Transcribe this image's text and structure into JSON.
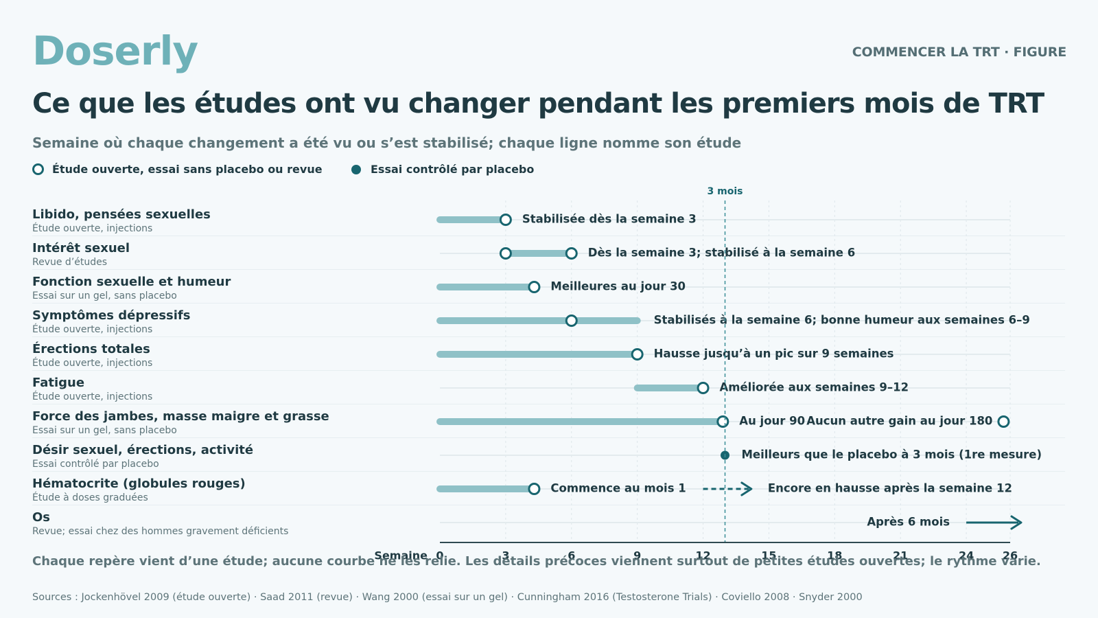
{
  "brand": {
    "logo": "Doserly",
    "section": "COMMENCER LA TRT · FIGURE"
  },
  "colors": {
    "accent": "#18656f",
    "bar": "#8fc1c7",
    "logo": "#6eb1b8",
    "gridline": "#dde6ea",
    "rowline": "#e3ebee"
  },
  "chart_data": {
    "type": "timeline",
    "title": "Ce que les études ont vu changer pendant les premiers mois de TRT",
    "subtitle": "Semaine où chaque changement a été vu ou s’est stabilisé; chaque ligne nomme son étude",
    "xlabel": "Semaine",
    "xlim": [
      0,
      26
    ],
    "xticks": [
      0,
      3,
      6,
      9,
      12,
      15,
      18,
      21,
      24,
      26
    ],
    "reference_line": {
      "x": 13,
      "label": "3 mois"
    },
    "legend": [
      {
        "marker": "open",
        "label": "Étude ouverte, essai sans placebo ou revue"
      },
      {
        "marker": "filled",
        "label": "Essai contrôlé par placebo"
      }
    ],
    "rows": [
      {
        "name": "Libido, pensées sexuelles",
        "study": "Étude ouverte, injections",
        "bars": [
          [
            0,
            3
          ]
        ],
        "markers": [
          {
            "x": 3,
            "type": "open"
          }
        ],
        "labels": [
          {
            "x": 3,
            "text": "Stabilisée dès la semaine 3",
            "side": "right"
          }
        ]
      },
      {
        "name": "Intérêt sexuel",
        "study": "Revue d’études",
        "bars": [
          [
            3,
            6
          ]
        ],
        "markers": [
          {
            "x": 3,
            "type": "open"
          },
          {
            "x": 6,
            "type": "open"
          }
        ],
        "labels": [
          {
            "x": 6,
            "text": "Dès la semaine 3; stabilisé à la semaine 6",
            "side": "right"
          }
        ]
      },
      {
        "name": "Fonction sexuelle et humeur",
        "study": "Essai sur un gel, sans placebo",
        "bars": [
          [
            0,
            4.3
          ]
        ],
        "markers": [
          {
            "x": 4.3,
            "type": "open"
          }
        ],
        "labels": [
          {
            "x": 4.3,
            "text": "Meilleures au jour 30",
            "side": "right"
          }
        ]
      },
      {
        "name": "Symptômes dépressifs",
        "study": "Étude ouverte, injections",
        "bars": [
          [
            0,
            9
          ]
        ],
        "markers": [
          {
            "x": 6,
            "type": "open"
          }
        ],
        "labels": [
          {
            "x": 9,
            "text": "Stabilisés à la semaine 6; bonne humeur aux semaines 6–9",
            "side": "right"
          }
        ]
      },
      {
        "name": "Érections totales",
        "study": "Étude ouverte, injections",
        "bars": [
          [
            0,
            9
          ]
        ],
        "markers": [
          {
            "x": 9,
            "type": "open"
          }
        ],
        "labels": [
          {
            "x": 9,
            "text": "Hausse jusqu’à un pic sur 9 semaines",
            "side": "right"
          }
        ]
      },
      {
        "name": "Fatigue",
        "study": "Étude ouverte, injections",
        "bars": [
          [
            9,
            12
          ]
        ],
        "markers": [
          {
            "x": 12,
            "type": "open"
          }
        ],
        "labels": [
          {
            "x": 12,
            "text": "Améliorée aux semaines 9–12",
            "side": "right"
          }
        ]
      },
      {
        "name": "Force des jambes, masse maigre et grasse",
        "study": "Essai sur un gel, sans placebo",
        "bars": [
          [
            0,
            12.9
          ]
        ],
        "dashed": [
          [
            12.9,
            25.7
          ]
        ],
        "markers": [
          {
            "x": 12.9,
            "type": "open"
          },
          {
            "x": 25.7,
            "type": "open"
          }
        ],
        "labels": [
          {
            "x": 12.9,
            "text": "Au jour 90",
            "side": "right"
          },
          {
            "x": 25.7,
            "text": "Aucun autre gain au jour 180",
            "side": "left"
          }
        ]
      },
      {
        "name": "Désir sexuel, érections, activité",
        "study": "Essai contrôlé par placebo",
        "bars": [],
        "markers": [
          {
            "x": 13,
            "type": "filled"
          }
        ],
        "labels": [
          {
            "x": 13,
            "text": "Meilleurs que le placebo à 3 mois (1re mesure)",
            "side": "right"
          }
        ]
      },
      {
        "name": "Hématocrite (globules rouges)",
        "study": "Étude à doses graduées",
        "bars": [
          [
            0,
            4.3
          ]
        ],
        "markers": [
          {
            "x": 4.3,
            "type": "open"
          }
        ],
        "arrows": [
          {
            "from": 12,
            "to": 14.2,
            "dashed": true
          }
        ],
        "labels": [
          {
            "x": 4.3,
            "text": "Commence au mois 1",
            "side": "right"
          },
          {
            "x": 14.2,
            "text": "Encore en hausse après la semaine 12",
            "side": "right"
          }
        ]
      },
      {
        "name": "Os",
        "study": "Revue; essai chez des hommes gravement déficients",
        "bars": [],
        "markers": [],
        "arrows": [
          {
            "from": 24,
            "to": 26.5,
            "dashed": false
          }
        ],
        "labels": [
          {
            "x": 24,
            "text": "Après 6 mois",
            "side": "left"
          }
        ]
      }
    ]
  },
  "footnote": "Chaque repère vient d’une étude; aucune courbe ne les relie. Les détails précoces viennent surtout de petites études ouvertes; le rythme varie.",
  "sources": "Sources : Jockenhövel 2009 (étude ouverte) · Saad 2011 (revue) · Wang 2000 (essai sur un gel) · Cunningham 2016 (Testosterone Trials) · Coviello 2008 · Snyder 2000"
}
